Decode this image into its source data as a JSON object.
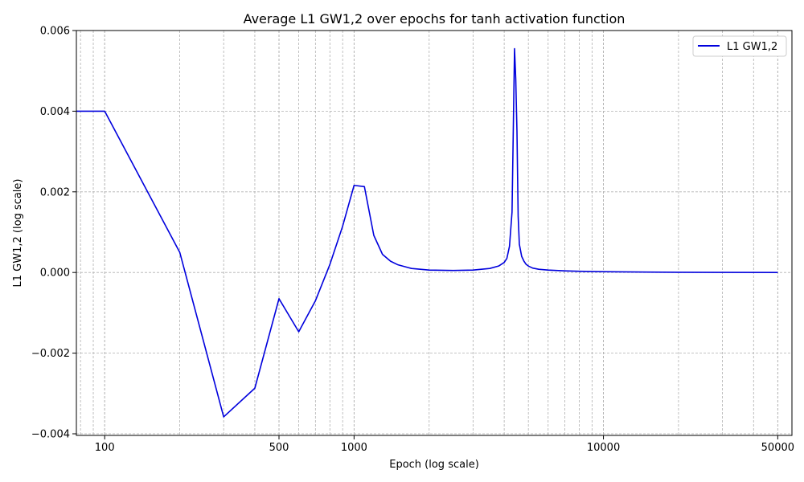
{
  "chart_data": {
    "type": "line",
    "title": "Average L1 GW1,2 over epochs for tanh activation function",
    "xlabel": "Epoch (log scale)",
    "ylabel": "L1 GW1,2 (log scale)",
    "xscale": "log",
    "xlim": [
      77,
      57000
    ],
    "ylim": [
      -0.00404,
      0.006
    ],
    "grid": true,
    "grid_style": "dashed",
    "legend_position": "upper right",
    "x_ticks": [
      {
        "value": 100,
        "label": "100"
      },
      {
        "value": 500,
        "label": "500"
      },
      {
        "value": 1000,
        "label": "1000"
      },
      {
        "value": 10000,
        "label": "10000"
      },
      {
        "value": 50000,
        "label": "50000"
      }
    ],
    "y_ticks": [
      {
        "value": -0.004,
        "label": "−0.004"
      },
      {
        "value": -0.002,
        "label": "−0.002"
      },
      {
        "value": 0.0,
        "label": "0.000"
      },
      {
        "value": 0.002,
        "label": "0.002"
      },
      {
        "value": 0.004,
        "label": "0.004"
      },
      {
        "value": 0.006,
        "label": "0.006"
      }
    ],
    "series": [
      {
        "name": "L1 GW1,2",
        "color": "#0000dd",
        "x": [
          77,
          100,
          200,
          300,
          400,
          500,
          600,
          700,
          800,
          900,
          1000,
          1100,
          1200,
          1300,
          1400,
          1500,
          1700,
          2000,
          2500,
          3000,
          3500,
          3800,
          4000,
          4100,
          4200,
          4300,
          4400,
          4450,
          4500,
          4550,
          4600,
          4700,
          4800,
          4900,
          5000,
          5200,
          5500,
          6000,
          7000,
          8000,
          10000,
          15000,
          20000,
          30000,
          50000
        ],
        "y": [
          0.004,
          0.004,
          0.0005,
          -0.00358,
          -0.00287,
          -0.00065,
          -0.00147,
          -0.0007,
          0.0002,
          0.00115,
          0.00216,
          0.00213,
          0.00092,
          0.00045,
          0.00028,
          0.00019,
          0.0001,
          6e-05,
          5e-05,
          6e-05,
          0.0001,
          0.00016,
          0.00025,
          0.00035,
          0.00065,
          0.0015,
          0.00555,
          0.0048,
          0.0035,
          0.0014,
          0.0007,
          0.0004,
          0.00028,
          0.0002,
          0.00016,
          0.00011,
          8e-05,
          6e-05,
          4e-05,
          3e-05,
          2e-05,
          1e-05,
          5e-06,
          2e-06,
          0.0
        ]
      }
    ]
  }
}
